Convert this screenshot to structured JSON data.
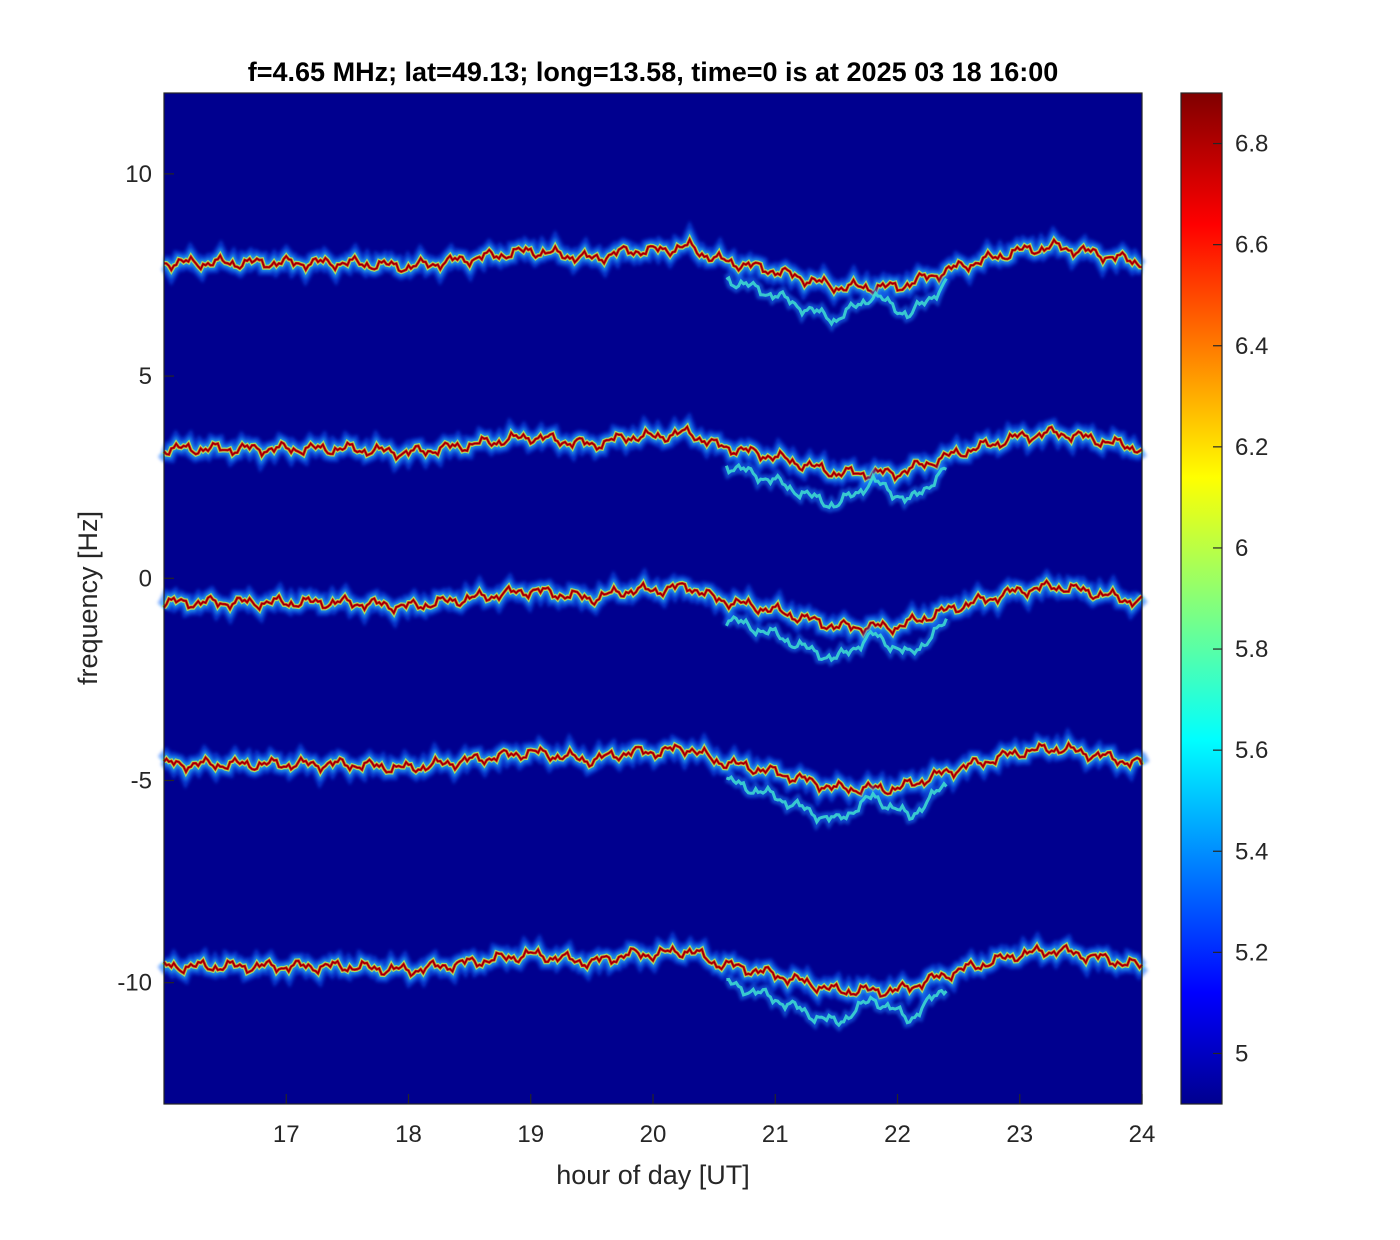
{
  "chart_data": {
    "type": "heatmap",
    "title": "f=4.65 MHz;  lat=49.13; long=13.58, time=0 is at 2025 03 18 16:00",
    "xlabel": "hour of day [UT]",
    "ylabel": "frequency [Hz]",
    "xlim": [
      16,
      24
    ],
    "ylim": [
      -13,
      12
    ],
    "xticks": [
      17,
      18,
      19,
      20,
      21,
      22,
      23,
      24
    ],
    "yticks": [
      10,
      5,
      0,
      -5,
      -10
    ],
    "colorbar": {
      "range": [
        4.9,
        6.9
      ],
      "ticks": [
        "6.8",
        "6.6",
        "6.4",
        "6.2",
        "6",
        "5.8",
        "5.6",
        "5.4",
        "5.2",
        "5"
      ],
      "colormap": "jet"
    },
    "colors": {
      "background": "#00008f",
      "peak": "#8b0000"
    },
    "grid": false,
    "series": [
      {
        "offset_hz": 7.8
      },
      {
        "offset_hz": 3.2
      },
      {
        "offset_hz": -0.6
      },
      {
        "offset_hz": -4.6
      },
      {
        "offset_hz": -9.6
      }
    ],
    "trace_profile": {
      "hours": [
        16.0,
        16.5,
        17.0,
        17.5,
        18.0,
        18.5,
        19.0,
        19.5,
        19.8,
        20.0,
        20.3,
        20.5,
        21.0,
        21.5,
        22.0,
        22.5,
        23.0,
        23.3,
        23.5,
        24.0
      ],
      "deviation_hz": [
        0.0,
        0.0,
        0.0,
        0.0,
        -0.1,
        0.1,
        0.3,
        0.1,
        0.3,
        0.3,
        0.4,
        0.1,
        -0.2,
        -0.6,
        -0.6,
        -0.1,
        0.3,
        0.4,
        0.3,
        0.0
      ]
    },
    "secondary_trace": {
      "hours": [
        20.6,
        21.0,
        21.3,
        21.5,
        21.8,
        22.1,
        22.4
      ],
      "deviation_hz": [
        -0.4,
        -0.8,
        -1.2,
        -1.4,
        -0.8,
        -1.3,
        -0.5
      ]
    }
  }
}
